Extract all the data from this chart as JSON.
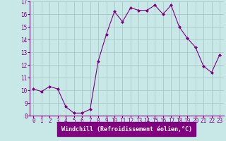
{
  "x": [
    0,
    1,
    2,
    3,
    4,
    5,
    6,
    7,
    8,
    9,
    10,
    11,
    12,
    13,
    14,
    15,
    16,
    17,
    18,
    19,
    20,
    21,
    22,
    23
  ],
  "y": [
    10.1,
    9.9,
    10.3,
    10.1,
    8.7,
    8.2,
    8.2,
    8.5,
    12.3,
    14.4,
    16.2,
    15.4,
    16.5,
    16.3,
    16.3,
    16.7,
    16.0,
    16.7,
    15.0,
    14.1,
    13.4,
    11.9,
    11.4,
    12.8
  ],
  "line_color": "#800080",
  "marker": "D",
  "marker_size": 2,
  "bg_color": "#c8e8e8",
  "grid_color": "#a8c8c8",
  "xlabel": "Windchill (Refroidissement éolien,°C)",
  "xlabel_bg": "#800080",
  "xlabel_fg": "#ffffff",
  "tick_color": "#800080",
  "axis_color": "#800080",
  "ylim": [
    8,
    17
  ],
  "xlim": [
    -0.5,
    23.5
  ],
  "yticks": [
    8,
    9,
    10,
    11,
    12,
    13,
    14,
    15,
    16,
    17
  ],
  "xticks": [
    0,
    1,
    2,
    3,
    4,
    5,
    6,
    7,
    8,
    9,
    10,
    11,
    12,
    13,
    14,
    15,
    16,
    17,
    18,
    19,
    20,
    21,
    22,
    23
  ],
  "tick_fontsize": 5.5,
  "xlabel_fontsize": 6.0
}
